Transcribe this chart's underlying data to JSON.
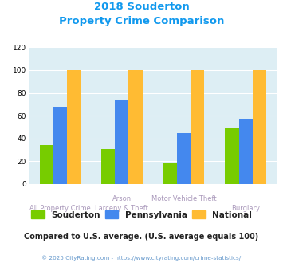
{
  "title_line1": "2018 Souderton",
  "title_line2": "Property Crime Comparison",
  "category_labels_top": [
    "",
    "Arson",
    "Motor Vehicle Theft",
    ""
  ],
  "category_labels_bottom": [
    "All Property Crime",
    "Larceny & Theft",
    "",
    "Burglary"
  ],
  "souderton": [
    34,
    31,
    19,
    50
  ],
  "pennsylvania": [
    68,
    74,
    45,
    57
  ],
  "national": [
    100,
    100,
    100,
    100
  ],
  "colors": {
    "souderton": "#77cc00",
    "pennsylvania": "#4488ee",
    "national": "#ffbb33"
  },
  "ylim": [
    0,
    120
  ],
  "yticks": [
    0,
    20,
    40,
    60,
    80,
    100,
    120
  ],
  "title_color": "#1199ee",
  "label_color": "#aa99bb",
  "plot_bg": "#ddeef4",
  "footer_text": "Compared to U.S. average. (U.S. average equals 100)",
  "copyright_text": "© 2025 CityRating.com - https://www.cityrating.com/crime-statistics/",
  "legend_labels": [
    "Souderton",
    "Pennsylvania",
    "National"
  ]
}
